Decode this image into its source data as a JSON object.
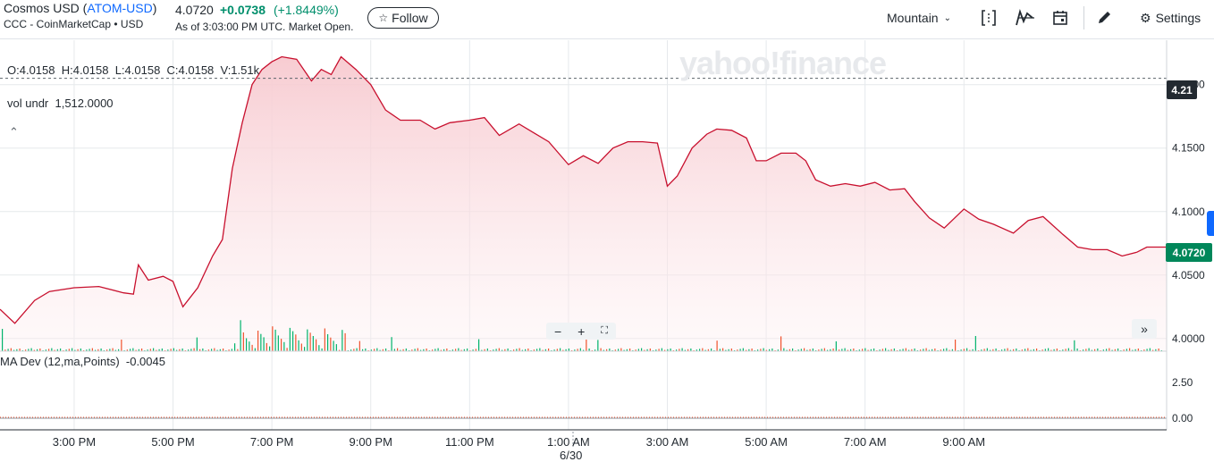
{
  "header": {
    "name_prefix": "Cosmos USD (",
    "symbol": "ATOM-USD",
    "name_suffix": ")",
    "exchange": "CCC - CoinMarketCap • USD",
    "price": "4.0720",
    "change": "+0.0738",
    "change_pct": "(+1.8449%)",
    "as_of": "As of 3:03:00 PM UTC. Market Open.",
    "follow_label": "Follow",
    "theme_label": "Mountain",
    "settings_label": "Settings"
  },
  "overlay": {
    "ohlc": "O:4.0158  H:4.0158  L:4.0158  C:4.0158  V:1.51k",
    "vol_undr": "vol undr  1,512.0000",
    "ma_dev": "MA Dev (12,ma,Points)  -0.0045",
    "watermark": "yahoo!finance",
    "date_mark": "6/30",
    "ref_value": "4.21",
    "last_value": "4.0720"
  },
  "colors": {
    "line": "#c8102e",
    "fill_top": "#f7c9cf",
    "up": "#00b36b",
    "down": "#f0522d",
    "last_tag": "#00875a",
    "accent": "#0f69ff"
  },
  "chart_data": {
    "type": "area",
    "x_ticks": [
      "3:00 PM",
      "5:00 PM",
      "7:00 PM",
      "9:00 PM",
      "11:00 PM",
      "1:00 AM",
      "3:00 AM",
      "5:00 AM",
      "7:00 AM",
      "9:00 AM"
    ],
    "y_ticks": [
      "4.2000",
      "4.1500",
      "4.1000",
      "4.0500",
      "4.0000"
    ],
    "ylim": [
      3.99,
      4.235
    ],
    "xlim_hours": [
      13.5,
      37.1
    ],
    "reference_line": 4.205,
    "series": [
      {
        "x": [
          13.5,
          13.8,
          14.2,
          14.5,
          15.0,
          15.5,
          16.0,
          16.2,
          16.3,
          16.5,
          16.8,
          17.0,
          17.2,
          17.5,
          17.8,
          18.0,
          18.2,
          18.4,
          18.6,
          18.8,
          19.0,
          19.2,
          19.5,
          19.8,
          20.0,
          20.2,
          20.4,
          20.7,
          21.0,
          21.3,
          21.6,
          22.0,
          22.3,
          22.6,
          23.0,
          23.3,
          23.6,
          24.0,
          24.3,
          24.6,
          25.0,
          25.3,
          25.6,
          25.9,
          26.2,
          26.5,
          26.8,
          27.0,
          27.2,
          27.5,
          27.8,
          28.0,
          28.3,
          28.6,
          28.8,
          29.0,
          29.3,
          29.6,
          29.8,
          30.0,
          30.3,
          30.6,
          30.9,
          31.2,
          31.5,
          31.8,
          32.0,
          32.3,
          32.6,
          33.0,
          33.3,
          33.6,
          34.0,
          34.3,
          34.6,
          35.0,
          35.3,
          35.6,
          35.9,
          36.2,
          36.5,
          36.7,
          36.9,
          37.1
        ],
        "values": [
          4.023,
          4.012,
          4.03,
          4.037,
          4.04,
          4.041,
          4.036,
          4.035,
          4.058,
          4.046,
          4.049,
          4.045,
          4.025,
          4.04,
          4.065,
          4.078,
          4.134,
          4.17,
          4.2,
          4.212,
          4.218,
          4.222,
          4.22,
          4.203,
          4.212,
          4.208,
          4.222,
          4.212,
          4.2,
          4.18,
          4.172,
          4.172,
          4.165,
          4.17,
          4.172,
          4.174,
          4.16,
          4.169,
          4.162,
          4.155,
          4.137,
          4.144,
          4.138,
          4.15,
          4.155,
          4.155,
          4.154,
          4.12,
          4.128,
          4.15,
          4.161,
          4.165,
          4.164,
          4.158,
          4.14,
          4.14,
          4.146,
          4.146,
          4.14,
          4.125,
          4.12,
          4.122,
          4.12,
          4.123,
          4.117,
          4.118,
          4.108,
          4.095,
          4.087,
          4.102,
          4.094,
          4.09,
          4.083,
          4.093,
          4.096,
          4.082,
          4.072,
          4.07,
          4.07,
          4.065,
          4.068,
          4.072,
          4.072,
          4.072
        ]
      }
    ],
    "ma_dev": {
      "y_ticks": [
        "2.50",
        "0.00"
      ],
      "current": "-0.0045"
    }
  }
}
